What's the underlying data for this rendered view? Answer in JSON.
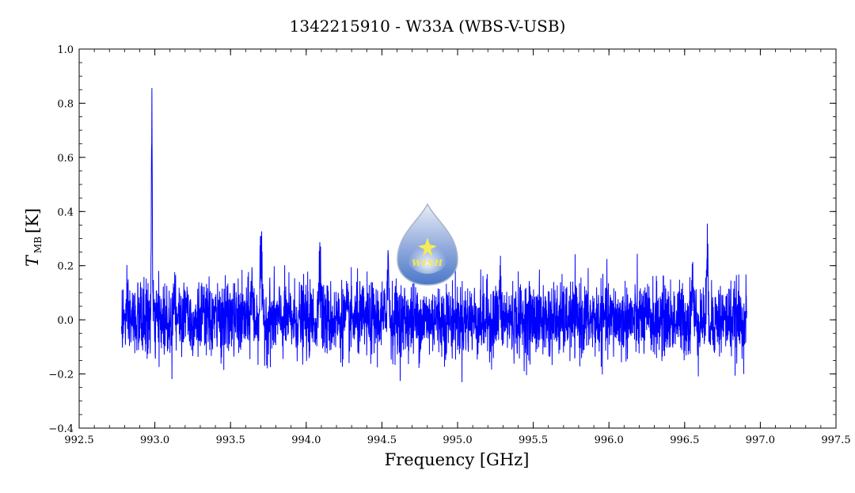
{
  "chart_data": {
    "type": "line",
    "title": "1342215910 - W33A (WBS-V-USB)",
    "xlabel": "Frequency [GHz]",
    "ylabel_main": "T",
    "ylabel_sub": "MB",
    "ylabel_unit": "[K]",
    "xlim": [
      992.5,
      997.5
    ],
    "ylim": [
      -0.4,
      1.0
    ],
    "x_ticks": [
      "992.5",
      "993.0",
      "993.5",
      "994.0",
      "994.5",
      "995.0",
      "995.5",
      "996.0",
      "996.5",
      "997.0",
      "997.5"
    ],
    "y_ticks": [
      "−0.4",
      "−0.2",
      "0.0",
      "0.2",
      "0.4",
      "0.6",
      "0.8",
      "1.0"
    ],
    "grid": false,
    "line_color": "#0000ff",
    "series": [
      {
        "x_range": [
          992.78,
          996.91
        ],
        "baseline": 0.0,
        "noise_rms": 0.08,
        "peaks": [
          {
            "x": 992.98,
            "y": 0.92
          },
          {
            "x": 993.13,
            "y": 0.26
          },
          {
            "x": 993.21,
            "y": 0.23
          },
          {
            "x": 993.64,
            "y": 0.24
          },
          {
            "x": 993.7,
            "y": 0.35
          },
          {
            "x": 994.09,
            "y": 0.37
          },
          {
            "x": 994.54,
            "y": 0.33
          },
          {
            "x": 994.85,
            "y": 0.15
          },
          {
            "x": 995.28,
            "y": 0.22
          },
          {
            "x": 996.55,
            "y": 0.26
          },
          {
            "x": 996.65,
            "y": 0.3
          }
        ],
        "min_value": -0.29
      }
    ],
    "logo": {
      "text": "WISH",
      "colors": {
        "drop_top": "#e9edf6",
        "drop_bottom": "#4a78c8",
        "star": "#f5ec55",
        "text": "#f3ea4a"
      }
    }
  }
}
